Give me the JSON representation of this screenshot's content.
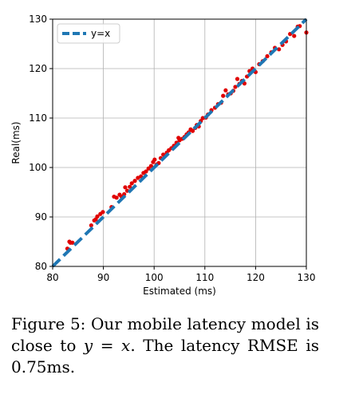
{
  "chart_data": {
    "type": "scatter",
    "title": "",
    "xlabel": "Estimated (ms)",
    "ylabel": "Real(ms)",
    "xlim": [
      80,
      130
    ],
    "ylim": [
      80,
      130
    ],
    "xticks": [
      80,
      90,
      100,
      110,
      120,
      130
    ],
    "yticks": [
      80,
      90,
      100,
      110,
      120,
      130
    ],
    "grid": true,
    "legend_position": "top-left",
    "reference_line": {
      "name": "y=x",
      "style": "dashed",
      "color": "#1f77b4"
    },
    "series": [
      {
        "color": "#e00000",
        "points": [
          [
            82.9,
            83.6
          ],
          [
            83.3,
            85.0
          ],
          [
            83.5,
            84.8
          ],
          [
            83.9,
            84.8
          ],
          [
            87.6,
            88.3
          ],
          [
            88.2,
            89.3
          ],
          [
            88.5,
            89.5
          ],
          [
            88.8,
            90.1
          ],
          [
            89.4,
            90.6
          ],
          [
            89.9,
            91.0
          ],
          [
            91.6,
            92.0
          ],
          [
            92.1,
            94.1
          ],
          [
            92.6,
            93.9
          ],
          [
            93.2,
            94.5
          ],
          [
            93.6,
            94.1
          ],
          [
            94.1,
            94.6
          ],
          [
            94.3,
            96.0
          ],
          [
            94.7,
            95.3
          ],
          [
            95.2,
            96.1
          ],
          [
            95.6,
            96.8
          ],
          [
            96.2,
            97.3
          ],
          [
            96.8,
            97.9
          ],
          [
            97.4,
            98.2
          ],
          [
            97.9,
            98.9
          ],
          [
            98.4,
            99.2
          ],
          [
            98.9,
            99.8
          ],
          [
            99.4,
            100.3
          ],
          [
            99.8,
            101.1
          ],
          [
            100.1,
            101.6
          ],
          [
            100.5,
            100.6
          ],
          [
            100.9,
            100.9
          ],
          [
            101.3,
            101.9
          ],
          [
            101.8,
            102.6
          ],
          [
            102.5,
            103.0
          ],
          [
            102.9,
            103.5
          ],
          [
            103.4,
            103.9
          ],
          [
            103.9,
            104.4
          ],
          [
            104.4,
            105.0
          ],
          [
            104.8,
            106.0
          ],
          [
            105.0,
            105.5
          ],
          [
            105.5,
            105.8
          ],
          [
            106.0,
            106.2
          ],
          [
            106.4,
            106.7
          ],
          [
            106.8,
            107.1
          ],
          [
            107.2,
            107.7
          ],
          [
            107.6,
            107.4
          ],
          [
            108.1,
            108.0
          ],
          [
            108.4,
            108.6
          ],
          [
            108.8,
            108.3
          ],
          [
            109.2,
            109.4
          ],
          [
            109.6,
            110.0
          ],
          [
            110.2,
            110.1
          ],
          [
            110.6,
            110.7
          ],
          [
            111.3,
            111.6
          ],
          [
            112.0,
            112.1
          ],
          [
            112.6,
            112.8
          ],
          [
            113.2,
            113.1
          ],
          [
            113.6,
            114.5
          ],
          [
            114.1,
            115.6
          ],
          [
            114.6,
            114.8
          ],
          [
            115.1,
            115.0
          ],
          [
            115.6,
            115.5
          ],
          [
            116.0,
            116.3
          ],
          [
            116.4,
            117.9
          ],
          [
            116.8,
            116.9
          ],
          [
            117.3,
            117.5
          ],
          [
            117.8,
            117.0
          ],
          [
            118.3,
            118.4
          ],
          [
            118.8,
            119.5
          ],
          [
            119.4,
            120.0
          ],
          [
            120.0,
            119.3
          ],
          [
            120.7,
            120.9
          ],
          [
            121.4,
            121.5
          ],
          [
            122.3,
            122.5
          ],
          [
            123.1,
            123.3
          ],
          [
            123.8,
            124.2
          ],
          [
            124.6,
            123.9
          ],
          [
            125.3,
            124.8
          ],
          [
            126.0,
            125.5
          ],
          [
            126.8,
            127.0
          ],
          [
            127.6,
            126.6
          ],
          [
            128.3,
            128.5
          ],
          [
            128.7,
            128.6
          ],
          [
            130.0,
            127.3
          ]
        ]
      }
    ]
  },
  "caption": {
    "part1": "Figure 5:  Our mobile latency model is close to ",
    "math": "y = x",
    "part2": ".  The latency RMSE is 0.75ms."
  }
}
